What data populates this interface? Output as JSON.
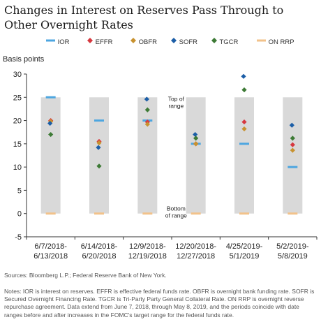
{
  "title": "Changes in Interest on Reserves Pass Through to Other Overnight Rates",
  "source": "Sources: Bloomberg L.P.; Federal Reserve Bank of New York.",
  "notes": "Notes: IOR is interest on reserves. EFFR is effective federal funds rate. OBFR is overnight bank funding rate. SOFR is Secured Overnight Financing Rate. TGCR is Tri-Party Party General Collateral Rate. ON RRP is overnight reverse repurchase agreement. Data extend from June 7, 2018, through May 8, 2019, and the periods coincide with date ranges before and after increases in the FOMC's target range for the federal funds rate.",
  "colors": {
    "IOR": "#4da6e0",
    "EFFR": "#d6383f",
    "OBFR": "#c8922f",
    "SOFR": "#1c5ea7",
    "TGCR": "#3d7a35",
    "ON RRP": "#f2c28a",
    "range_band": "#d9d9d9"
  },
  "chart_data": {
    "type": "scatter",
    "ylabel": "Basis points",
    "ylim": [
      -5,
      30
    ],
    "yticks": [
      -5,
      0,
      5,
      10,
      15,
      20,
      25,
      30
    ],
    "legend_position": "top",
    "categories": [
      [
        "6/7/2018-",
        "6/13/2018"
      ],
      [
        "6/14/2018-",
        "6/20/2018"
      ],
      [
        "12/9/2018-",
        "12/19/2018"
      ],
      [
        "12/20/2018-",
        "12/27/2018"
      ],
      [
        "4/25/2019-",
        "5/1/2019"
      ],
      [
        "5/2/2019-",
        "5/8/2019"
      ]
    ],
    "range": {
      "bottom": 0,
      "top": 25
    },
    "annotations": {
      "top": [
        "Top of",
        "range"
      ],
      "bottom": [
        "Bottom",
        "of range"
      ]
    },
    "series": [
      {
        "name": "IOR",
        "marker": "dash",
        "values": [
          25,
          20,
          20,
          15,
          15,
          10
        ]
      },
      {
        "name": "EFFR",
        "marker": "diamond",
        "values": [
          20,
          15.5,
          19.7,
          15,
          19.7,
          14.8
        ]
      },
      {
        "name": "OBFR",
        "marker": "diamond",
        "values": [
          19.8,
          15.2,
          19.2,
          15,
          18.2,
          13.6
        ]
      },
      {
        "name": "SOFR",
        "marker": "diamond",
        "values": [
          19.4,
          14.2,
          24.6,
          17,
          29.5,
          19
        ]
      },
      {
        "name": "TGCR",
        "marker": "diamond",
        "values": [
          17,
          10.2,
          22.3,
          16.2,
          26.6,
          16.2
        ]
      },
      {
        "name": "ON RRP",
        "marker": "dash",
        "values": [
          0,
          0,
          0,
          0,
          0,
          0
        ]
      }
    ]
  }
}
